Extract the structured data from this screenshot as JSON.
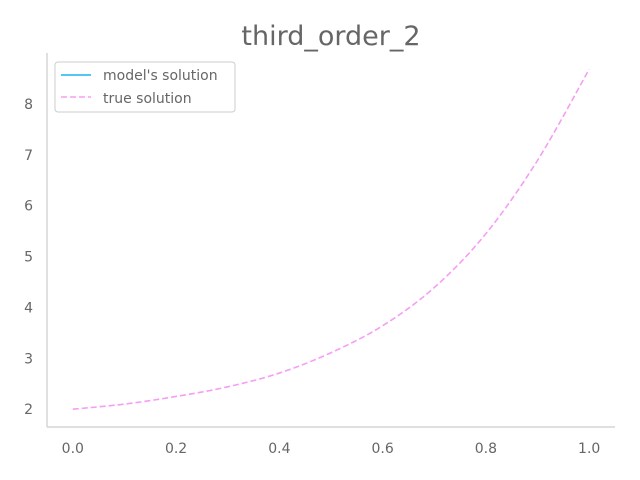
{
  "chart_data": {
    "type": "line",
    "title": "third_order_2",
    "xlabel": "",
    "ylabel": "",
    "xlim": [
      -0.05,
      1.05
    ],
    "ylim": [
      1.65,
      9.0
    ],
    "xticks": [
      0.0,
      0.2,
      0.4,
      0.6,
      0.8,
      1.0
    ],
    "xtick_labels": [
      "0.0",
      "0.2",
      "0.4",
      "0.6",
      "0.8",
      "1.0"
    ],
    "yticks": [
      2,
      3,
      4,
      5,
      6,
      7,
      8
    ],
    "ytick_labels": [
      "2",
      "3",
      "4",
      "5",
      "6",
      "7",
      "8"
    ],
    "grid": false,
    "legend_placement": "upper-left",
    "series": [
      {
        "name": "model's solution",
        "style": "solid",
        "color": "#1ab3f0",
        "x": [],
        "y": []
      },
      {
        "name": "true solution",
        "style": "dashed",
        "color": "#f59ef3",
        "x": [
          0.0,
          0.1,
          0.2,
          0.3,
          0.4,
          0.5,
          0.6,
          0.7,
          0.8,
          0.9,
          1.0
        ],
        "y": [
          2.0,
          2.1,
          2.25,
          2.44,
          2.71,
          3.11,
          3.64,
          4.39,
          5.45,
          6.89,
          8.68
        ]
      }
    ]
  }
}
